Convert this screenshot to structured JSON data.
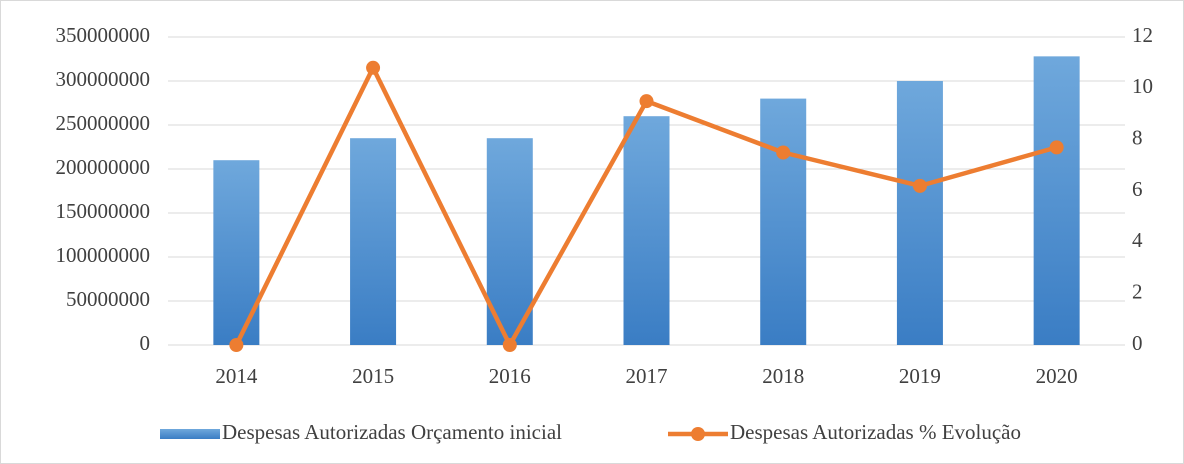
{
  "chart_data": {
    "type": "combo",
    "categories": [
      "2014",
      "2015",
      "2016",
      "2017",
      "2018",
      "2019",
      "2020"
    ],
    "series": [
      {
        "name": "Despesas Autorizadas Orçamento inicial",
        "type": "bar",
        "color": "#5b9bd5",
        "values": [
          210000000,
          235000000,
          235000000,
          260000000,
          280000000,
          300000000,
          328000000
        ]
      },
      {
        "name": "Despesas Autorizadas % Evolução",
        "type": "line",
        "color": "#ed7d31",
        "axis": "y2",
        "values": [
          0,
          10.8,
          0,
          9.5,
          7.5,
          6.2,
          7.7
        ]
      }
    ],
    "ylim": [
      0,
      350000000
    ],
    "yticks": [
      0,
      50000000,
      100000000,
      150000000,
      200000000,
      250000000,
      300000000,
      350000000
    ],
    "y2lim": [
      0,
      12
    ],
    "y2ticks": [
      0,
      2,
      4,
      6,
      8,
      10,
      12
    ],
    "grid": true,
    "legend": "bottom"
  }
}
